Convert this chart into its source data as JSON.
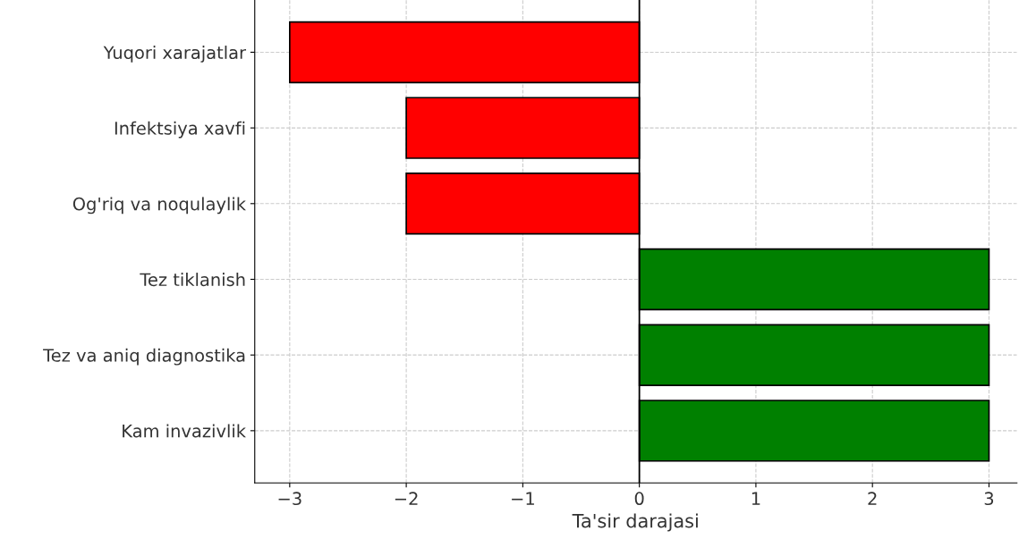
{
  "chart_data": {
    "type": "bar",
    "orientation": "horizontal",
    "xlabel": "Ta'sir darajasi",
    "categories": [
      "Yuqori xarajatlar",
      "Infektsiya xavfi",
      "Og'riq va noqulaylik",
      "Tez tiklanish",
      "Tez va aniq diagnostika",
      "Kam invazivlik"
    ],
    "values": [
      -3,
      -2,
      -2,
      3,
      3,
      3
    ],
    "colors": [
      "#ff0000",
      "#ff0000",
      "#ff0000",
      "#008000",
      "#008000",
      "#008000"
    ],
    "xlim": [
      -3.3,
      3.24
    ],
    "xticks": [
      -3,
      -2,
      -1,
      0,
      1,
      2,
      3
    ],
    "ref_lines": [
      {
        "axis": "x",
        "value": 0,
        "color": "#000000"
      }
    ],
    "grid": true
  }
}
